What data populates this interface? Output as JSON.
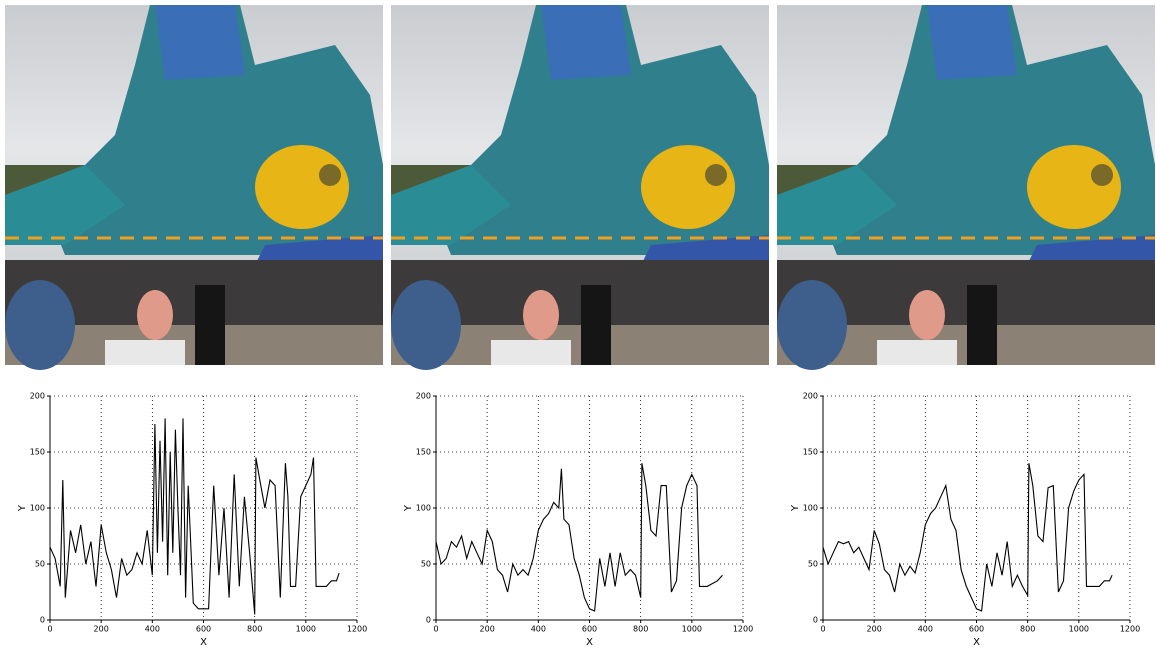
{
  "chart_data": [
    {
      "type": "line",
      "xlabel": "X",
      "ylabel": "Y",
      "xlim": [
        0,
        1200
      ],
      "ylim": [
        0,
        200
      ],
      "xticks": [
        0,
        200,
        400,
        600,
        800,
        1000,
        1200
      ],
      "yticks": [
        0,
        50,
        100,
        150,
        200
      ],
      "grid": true,
      "color": "#000000",
      "x": [
        0,
        20,
        40,
        50,
        60,
        80,
        100,
        120,
        140,
        160,
        180,
        200,
        220,
        240,
        260,
        280,
        300,
        320,
        340,
        360,
        380,
        400,
        410,
        420,
        430,
        440,
        450,
        460,
        470,
        480,
        490,
        500,
        510,
        520,
        530,
        540,
        560,
        580,
        600,
        620,
        640,
        660,
        680,
        700,
        720,
        740,
        760,
        780,
        800,
        805,
        820,
        840,
        860,
        880,
        900,
        920,
        930,
        940,
        960,
        980,
        1000,
        1020,
        1030,
        1040,
        1060,
        1080,
        1100,
        1120,
        1130
      ],
      "values": [
        65,
        55,
        30,
        125,
        20,
        80,
        60,
        85,
        50,
        70,
        30,
        85,
        60,
        45,
        20,
        55,
        40,
        45,
        60,
        50,
        80,
        40,
        175,
        60,
        160,
        70,
        180,
        40,
        150,
        60,
        170,
        100,
        40,
        180,
        20,
        120,
        15,
        10,
        10,
        10,
        120,
        40,
        100,
        20,
        130,
        30,
        110,
        60,
        5,
        145,
        125,
        100,
        125,
        120,
        20,
        140,
        110,
        30,
        30,
        110,
        120,
        130,
        145,
        30,
        30,
        30,
        35,
        35,
        42
      ]
    },
    {
      "type": "line",
      "xlabel": "X",
      "ylabel": "Y",
      "xlim": [
        0,
        1200
      ],
      "ylim": [
        0,
        200
      ],
      "xticks": [
        0,
        200,
        400,
        600,
        800,
        1000,
        1200
      ],
      "yticks": [
        0,
        50,
        100,
        150,
        200
      ],
      "grid": true,
      "color": "#000000",
      "x": [
        0,
        20,
        40,
        60,
        80,
        100,
        120,
        140,
        160,
        180,
        200,
        220,
        240,
        260,
        280,
        300,
        320,
        340,
        360,
        380,
        400,
        420,
        440,
        460,
        480,
        490,
        500,
        520,
        540,
        560,
        580,
        600,
        620,
        640,
        660,
        680,
        700,
        720,
        740,
        760,
        780,
        800,
        805,
        820,
        840,
        860,
        880,
        900,
        920,
        940,
        960,
        980,
        1000,
        1020,
        1030,
        1060,
        1100,
        1120
      ],
      "values": [
        70,
        50,
        55,
        70,
        65,
        75,
        55,
        70,
        60,
        50,
        80,
        70,
        45,
        40,
        25,
        50,
        40,
        45,
        40,
        55,
        80,
        90,
        95,
        105,
        100,
        135,
        90,
        85,
        55,
        40,
        20,
        10,
        8,
        55,
        30,
        60,
        30,
        60,
        40,
        45,
        40,
        20,
        140,
        120,
        80,
        75,
        120,
        120,
        25,
        35,
        100,
        120,
        130,
        120,
        30,
        30,
        35,
        40
      ]
    },
    {
      "type": "line",
      "xlabel": "X",
      "ylabel": "Y",
      "xlim": [
        0,
        1200
      ],
      "ylim": [
        0,
        200
      ],
      "xticks": [
        0,
        200,
        400,
        600,
        800,
        1000,
        1200
      ],
      "yticks": [
        0,
        50,
        100,
        150,
        200
      ],
      "grid": true,
      "color": "#000000",
      "x": [
        0,
        20,
        40,
        60,
        80,
        100,
        120,
        140,
        160,
        180,
        200,
        220,
        240,
        260,
        280,
        300,
        320,
        340,
        360,
        380,
        400,
        420,
        440,
        460,
        480,
        500,
        520,
        540,
        560,
        580,
        600,
        620,
        640,
        660,
        680,
        700,
        720,
        740,
        760,
        780,
        800,
        805,
        820,
        840,
        860,
        880,
        900,
        920,
        940,
        960,
        980,
        1000,
        1020,
        1030,
        1060,
        1080,
        1100,
        1120,
        1130
      ],
      "values": [
        65,
        50,
        60,
        70,
        68,
        70,
        60,
        65,
        55,
        45,
        80,
        68,
        45,
        40,
        25,
        50,
        40,
        48,
        42,
        60,
        85,
        95,
        100,
        110,
        120,
        90,
        80,
        45,
        30,
        20,
        10,
        8,
        50,
        30,
        60,
        40,
        70,
        30,
        40,
        30,
        22,
        140,
        120,
        75,
        70,
        118,
        120,
        25,
        35,
        100,
        115,
        125,
        130,
        30,
        30,
        30,
        35,
        35,
        40
      ]
    }
  ]
}
